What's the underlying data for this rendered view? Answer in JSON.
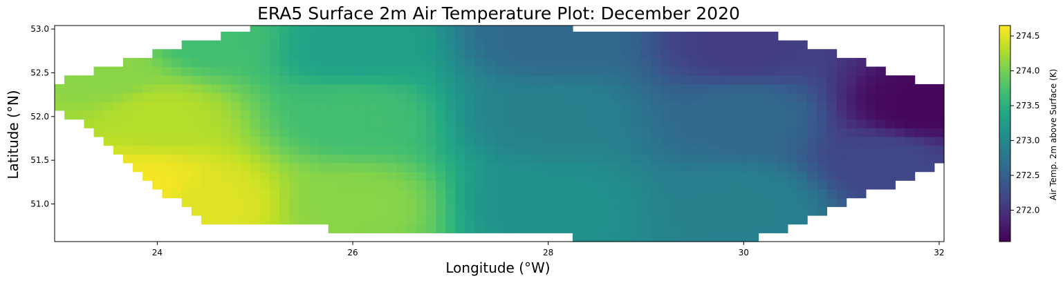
{
  "chart_data": {
    "type": "heatmap",
    "title": "ERA5 Surface 2m Air Temperature Plot: December 2020",
    "xlabel": "Longitude (°W)",
    "ylabel": "Latitude (°N)",
    "xlim": [
      22.95,
      32.05
    ],
    "ylim": [
      50.57,
      53.04
    ],
    "x_ticks": [
      24,
      26,
      28,
      30,
      32
    ],
    "x_tick_labels": [
      "24",
      "26",
      "28",
      "30",
      "32"
    ],
    "y_ticks": [
      51.0,
      51.5,
      52.0,
      52.5,
      53.0
    ],
    "y_tick_labels": [
      "51.0",
      "51.5",
      "52.0",
      "52.5",
      "53.0"
    ],
    "grid_resolution_deg": 0.1,
    "colormap": "viridis",
    "colormap_stops": [
      "#440154",
      "#482475",
      "#414487",
      "#355f8d",
      "#2a788e",
      "#21918c",
      "#22a884",
      "#44bf70",
      "#7ad151",
      "#bddf26",
      "#fde725"
    ],
    "colorbar": {
      "label": "Air Temp. 2m above Surface (K)",
      "range": [
        271.55,
        274.65
      ],
      "ticks": [
        272.0,
        272.5,
        273.0,
        273.5,
        274.0,
        274.5
      ],
      "tick_labels": [
        "272.0",
        "272.5",
        "273.0",
        "273.5",
        "274.0",
        "274.5"
      ]
    },
    "temperature_field_K": {
      "description": "Temperature decreases from west (~274.6 K at lon 24, lat 51.1) to east (~271.6 K at lon 32, lat 52.2)",
      "samples": [
        {
          "lon": 23.9,
          "lat": 51.2,
          "value": 274.6
        },
        {
          "lon": 24.5,
          "lat": 51.0,
          "value": 274.5
        },
        {
          "lon": 24.0,
          "lat": 52.0,
          "value": 274.3
        },
        {
          "lon": 23.5,
          "lat": 52.5,
          "value": 274.1
        },
        {
          "lon": 24.5,
          "lat": 52.9,
          "value": 273.7
        },
        {
          "lon": 26.0,
          "lat": 51.0,
          "value": 274.1
        },
        {
          "lon": 26.0,
          "lat": 52.0,
          "value": 273.7
        },
        {
          "lon": 26.0,
          "lat": 52.8,
          "value": 273.3
        },
        {
          "lon": 28.0,
          "lat": 51.0,
          "value": 273.1
        },
        {
          "lon": 28.0,
          "lat": 52.0,
          "value": 272.9
        },
        {
          "lon": 28.0,
          "lat": 52.9,
          "value": 272.6
        },
        {
          "lon": 30.0,
          "lat": 51.0,
          "value": 272.9
        },
        {
          "lon": 30.0,
          "lat": 52.0,
          "value": 272.6
        },
        {
          "lon": 30.0,
          "lat": 52.8,
          "value": 272.1
        },
        {
          "lon": 31.5,
          "lat": 51.5,
          "value": 272.2
        },
        {
          "lon": 31.8,
          "lat": 52.1,
          "value": 271.6
        }
      ]
    }
  }
}
